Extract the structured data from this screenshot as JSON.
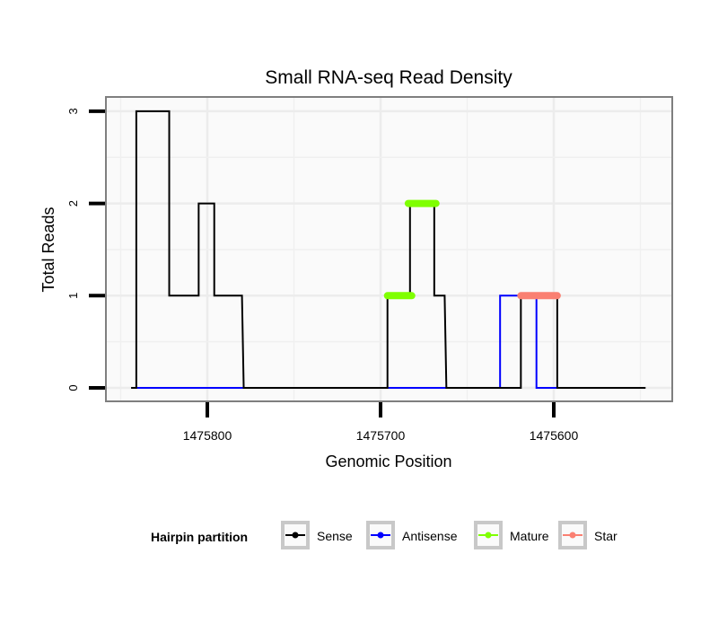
{
  "chart_data": {
    "type": "line",
    "title": "Small RNA-seq Read Density",
    "xlabel": "Genomic Position",
    "ylabel": "Total Reads",
    "x_reversed": true,
    "xlim": [
      1475850,
      1475541
    ],
    "ylim": [
      -0.15,
      3.15
    ],
    "xticks": [
      1475800,
      1475700,
      1475600
    ],
    "xtick_labels": [
      "1475800",
      "1475700",
      "1475600"
    ],
    "yticks": [
      0,
      1,
      2,
      3
    ],
    "ytick_labels": [
      "0",
      "1",
      "2",
      "3"
    ],
    "grid": true,
    "legend": {
      "title": "Hairpin partition",
      "placement": "bottom",
      "entries": [
        {
          "label": "Sense",
          "color": "#000000"
        },
        {
          "label": "Antisense",
          "color": "#0000ff"
        },
        {
          "label": "Mature",
          "color": "#7fff00"
        },
        {
          "label": "Star",
          "color": "#fa8072"
        }
      ]
    },
    "series": [
      {
        "name": "Antisense",
        "color": "#0000ff",
        "width": 2,
        "x": [
          1475841,
          1475779,
          1475696,
          1475662,
          1475631,
          1475631,
          1475610,
          1475610,
          1475598
        ],
        "y": [
          0,
          0,
          0,
          0,
          0,
          1,
          1,
          0,
          0
        ]
      },
      {
        "name": "Sense",
        "color": "#000000",
        "width": 2,
        "x": [
          1475844,
          1475841,
          1475841,
          1475822,
          1475822,
          1475805,
          1475805,
          1475796,
          1475796,
          1475780,
          1475779,
          1475696,
          1475696,
          1475683,
          1475683,
          1475669,
          1475669,
          1475663,
          1475662,
          1475619,
          1475619,
          1475598,
          1475598,
          1475547
        ],
        "y": [
          0,
          0,
          3,
          3,
          1,
          1,
          2,
          2,
          1,
          1,
          0,
          0,
          1,
          1,
          2,
          2,
          1,
          1,
          0,
          0,
          1,
          1,
          0,
          0
        ]
      },
      {
        "name": "Mature",
        "color": "#7fff00",
        "width": 8,
        "segments": [
          {
            "x": [
              1475696,
              1475682
            ],
            "y": [
              1,
              1
            ]
          },
          {
            "x": [
              1475684,
              1475668
            ],
            "y": [
              2,
              2
            ]
          }
        ]
      },
      {
        "name": "Star",
        "color": "#fa8072",
        "width": 8,
        "segments": [
          {
            "x": [
              1475619,
              1475598
            ],
            "y": [
              1,
              1
            ]
          }
        ]
      }
    ]
  }
}
